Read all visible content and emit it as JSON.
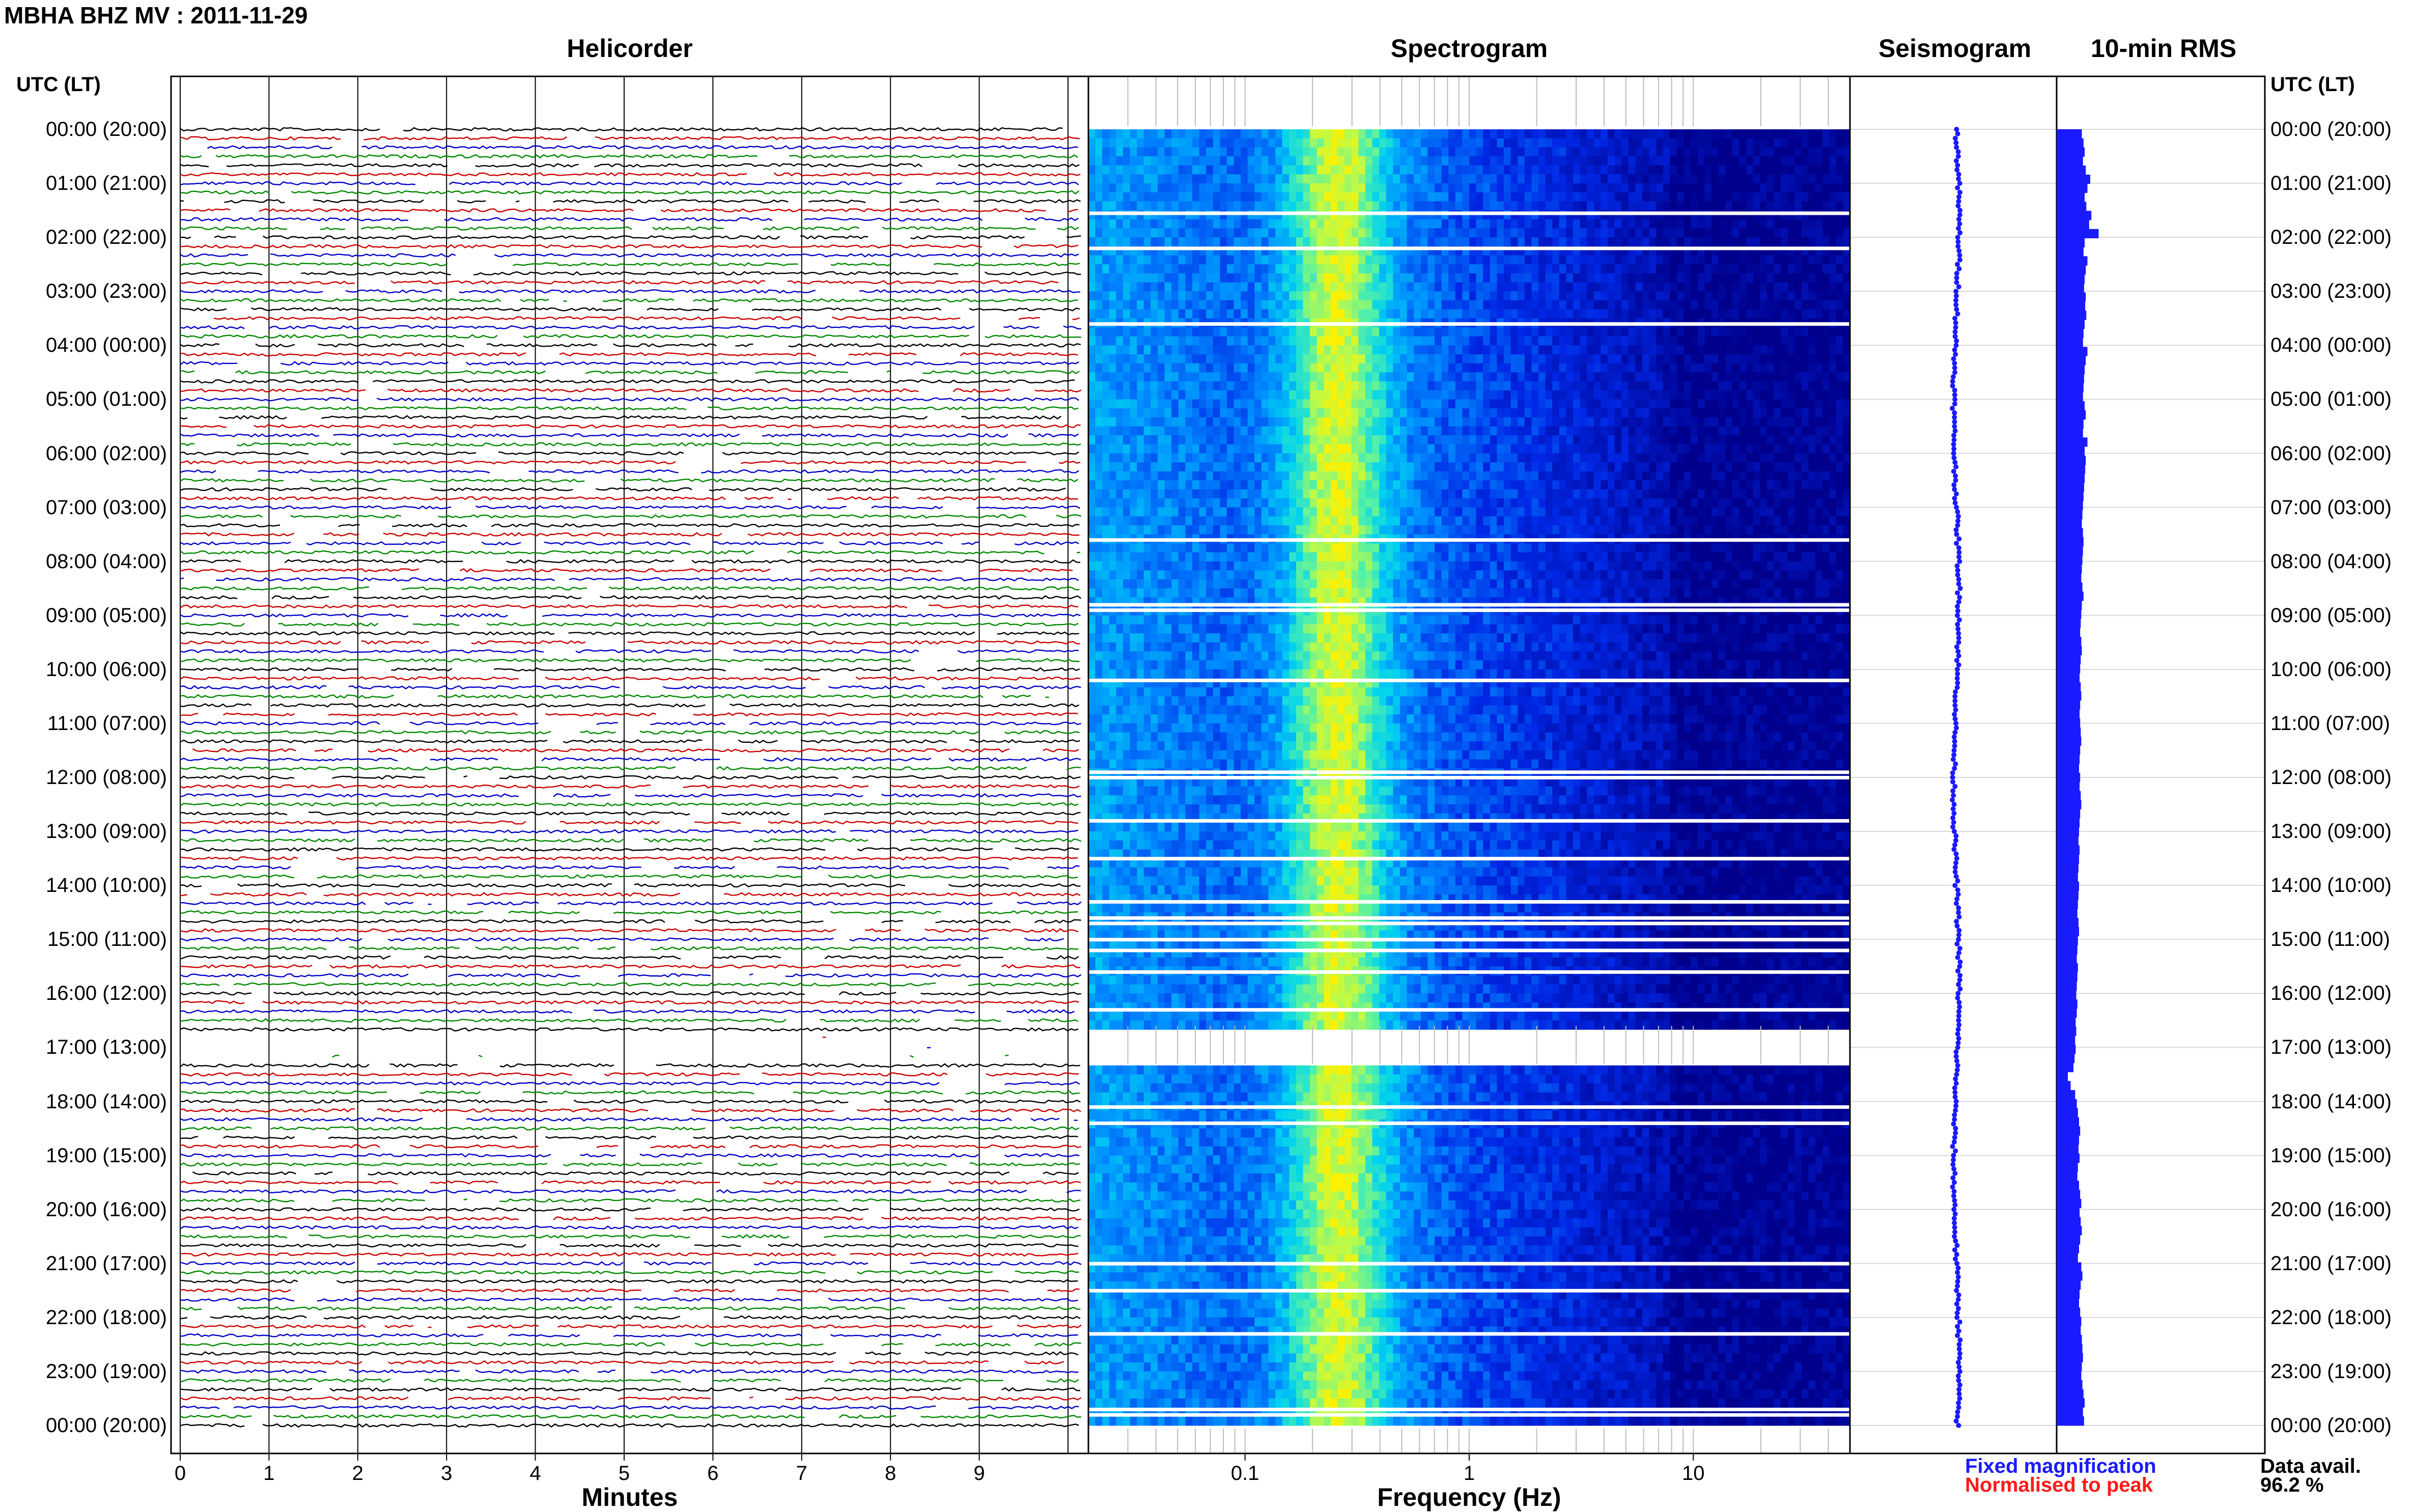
{
  "title": "MBHA BHZ MV : 2011-11-29",
  "panels": {
    "helicorder": "Helicorder",
    "spectrogram": "Spectrogram",
    "seismogram": "Seismogram",
    "rms": "10-min RMS"
  },
  "axis_header_left": "UTC (LT)",
  "axis_header_right": "UTC (LT)",
  "hour_labels": [
    "00:00 (20:00)",
    "01:00 (21:00)",
    "02:00 (22:00)",
    "03:00 (23:00)",
    "04:00 (00:00)",
    "05:00 (01:00)",
    "06:00 (02:00)",
    "07:00 (03:00)",
    "08:00 (04:00)",
    "09:00 (05:00)",
    "10:00 (06:00)",
    "11:00 (07:00)",
    "12:00 (08:00)",
    "13:00 (09:00)",
    "14:00 (10:00)",
    "15:00 (11:00)",
    "16:00 (12:00)",
    "17:00 (13:00)",
    "18:00 (14:00)",
    "19:00 (15:00)",
    "20:00 (16:00)",
    "21:00 (17:00)",
    "22:00 (18:00)",
    "23:00 (19:00)",
    "00:00 (20:00)"
  ],
  "legend": {
    "fixed": "Fixed magnification",
    "normalised": "Normalised to peak",
    "fixed_color": "#1a1aff",
    "normalised_color": "#ff1a1a"
  },
  "data_avail": {
    "label": "Data avail.",
    "value": "96.2 %"
  },
  "chart_data": [
    {
      "type": "line",
      "name": "helicorder",
      "title": "Helicorder",
      "xlabel": "Minutes",
      "xlim": [
        0,
        10
      ],
      "xticks": [
        "0",
        "1",
        "2",
        "3",
        "4",
        "5",
        "6",
        "7",
        "8",
        "9"
      ],
      "trace_colors": [
        "#000000",
        "#cc0000",
        "#0000cc",
        "#008800"
      ],
      "gap_hours": [
        17.0
      ]
    },
    {
      "type": "heatmap",
      "name": "spectrogram",
      "title": "Spectrogram",
      "xlabel": "Frequency (Hz)",
      "xscale": "log",
      "xlim": [
        0.02,
        50
      ],
      "xticks": [
        "0.1",
        "1",
        "10"
      ],
      "gap_hours": [
        1.55,
        2.2,
        3.6,
        7.6,
        8.8,
        8.9,
        10.2,
        11.9,
        12.0,
        12.8,
        13.5,
        14.3,
        14.6,
        14.7,
        15.0,
        15.2,
        15.6,
        16.3,
        18.1,
        18.4,
        21.0,
        21.5,
        22.3,
        23.7,
        23.8
      ],
      "data_gap_hours": [
        16.6,
        17.3
      ]
    },
    {
      "type": "scatter",
      "name": "seismogram",
      "title": "Seismogram",
      "color": "#1a1aff"
    },
    {
      "type": "bar",
      "name": "rms",
      "title": "10-min RMS",
      "color": "#1a1aff",
      "values_relative": [
        0.45,
        0.48,
        0.5,
        0.47,
        0.52,
        0.6,
        0.55,
        0.5,
        0.53,
        0.62,
        0.58,
        0.75,
        0.5,
        0.48,
        0.55,
        0.52,
        0.5,
        0.49,
        0.52,
        0.51,
        0.53,
        0.5,
        0.48,
        0.47,
        0.55,
        0.52,
        0.5,
        0.49,
        0.48,
        0.47,
        0.5,
        0.52,
        0.48,
        0.47,
        0.55,
        0.5,
        0.52,
        0.51,
        0.5,
        0.49,
        0.48,
        0.47,
        0.46,
        0.45,
        0.47,
        0.48,
        0.47,
        0.46,
        0.45,
        0.44,
        0.46,
        0.48,
        0.45,
        0.44,
        0.43,
        0.42,
        0.44,
        0.45,
        0.43,
        0.42,
        0.41,
        0.43,
        0.44,
        0.42,
        0.41,
        0.42,
        0.43,
        0.44,
        0.42,
        0.41,
        0.4,
        0.42,
        0.41,
        0.43,
        0.44,
        0.42,
        0.41,
        0.4,
        0.39,
        0.41,
        0.4,
        0.39,
        0.38,
        0.4,
        0.39,
        0.38,
        0.37,
        0.39,
        0.4,
        0.38,
        0.37,
        0.36,
        0.38,
        0.37,
        0.36,
        0.35,
        0.37,
        0.36,
        0.34,
        0.35,
        0.33,
        0.34,
        0.32,
        0.3,
        0.2,
        0.25,
        0.33,
        0.36,
        0.38,
        0.4,
        0.42,
        0.4,
        0.39,
        0.41,
        0.38,
        0.37,
        0.4,
        0.42,
        0.44,
        0.41,
        0.43,
        0.45,
        0.42,
        0.4,
        0.38,
        0.44,
        0.46,
        0.43,
        0.41,
        0.4,
        0.42,
        0.44,
        0.43,
        0.45,
        0.46,
        0.47,
        0.45,
        0.44,
        0.46,
        0.48,
        0.5,
        0.47,
        0.49
      ]
    }
  ]
}
